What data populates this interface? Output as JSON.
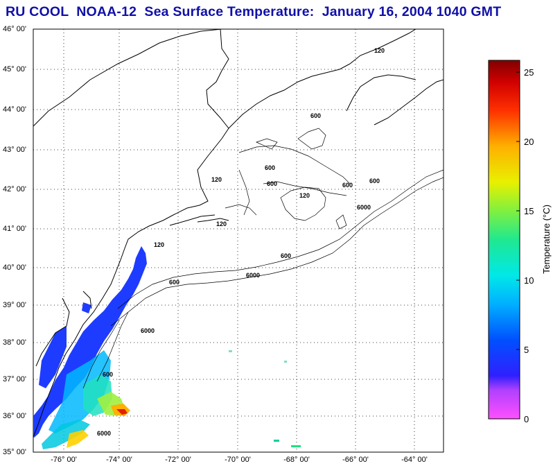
{
  "title": "RU COOL  NOAA-12  Sea Surface Temperature:  January 16, 2004 1040 GMT",
  "map": {
    "lat_labels": [
      "46° 00'",
      "45° 00'",
      "44° 00'",
      "43° 00'",
      "42° 00'",
      "41° 00'",
      "40° 00'",
      "39° 00'",
      "38° 00'",
      "37° 00'",
      "36° 00'",
      "35° 00'"
    ],
    "lon_labels": [
      "-76° 00'",
      "-74° 00'",
      "-72° 00'",
      "-70° 00'",
      "-68° 00'",
      "-66° 00'",
      "-64° 00'"
    ],
    "isobath_labels": [
      "120",
      "600",
      "6000"
    ]
  },
  "colorbar": {
    "label": "Temperature (°C)",
    "ticks": [
      "25",
      "20",
      "15",
      "10",
      "5",
      "0"
    ]
  },
  "colors": {
    "title": "#1010a8",
    "cold": "#1e3cff",
    "mid": "#00e0e0",
    "warm": "#ffd000",
    "hot": "#e02000"
  }
}
